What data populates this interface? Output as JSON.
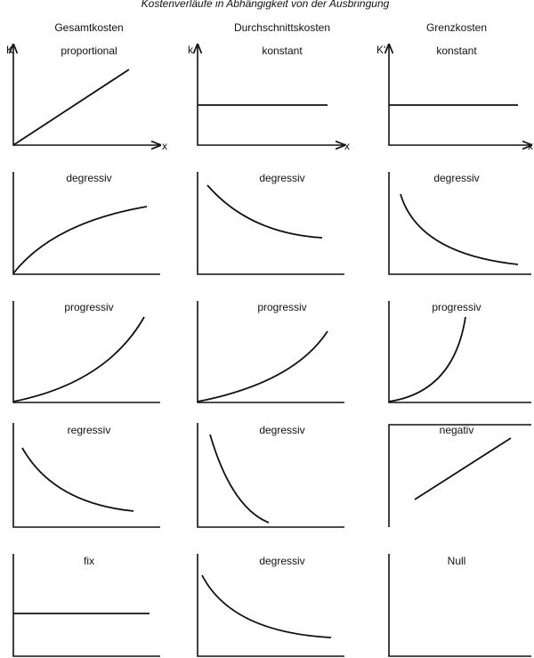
{
  "title": "Kostenverläufe in Abhängigkeit von der Ausbringung",
  "columns": [
    {
      "header": "Gesamtkosten",
      "y_axis": "K",
      "x_axis": "x"
    },
    {
      "header": "Durchschnittskosten",
      "y_axis": "k",
      "x_axis": "x"
    },
    {
      "header": "Grenzkosten",
      "y_axis": "K'",
      "x_axis": "x"
    }
  ],
  "rows": [
    [
      "proportional",
      "konstant",
      "konstant"
    ],
    [
      "degressiv",
      "degressiv",
      "degressiv"
    ],
    [
      "progressiv",
      "progressiv",
      "progressiv"
    ],
    [
      "regressiv",
      "degressiv",
      "negativ"
    ],
    [
      "fix",
      "degressiv",
      "Null"
    ]
  ]
}
